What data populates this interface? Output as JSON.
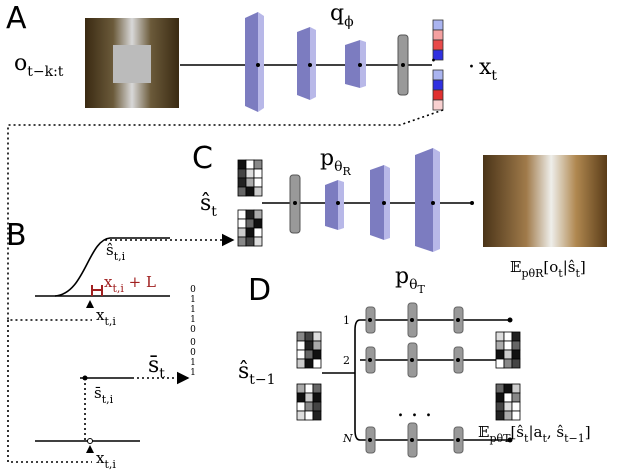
{
  "panels": {
    "a": {
      "label": "A",
      "input": {
        "base": "o",
        "sub": "t−k:t"
      },
      "encoder": {
        "base": "q",
        "sub": "ϕ"
      },
      "output": {
        "base": "x",
        "sub": "t"
      }
    },
    "b": {
      "label": "B",
      "s_hat": {
        "base": "ŝ",
        "sub": "t,i"
      },
      "upper": {
        "base": "x",
        "sub": "t,i",
        "tail": " + L"
      },
      "x_upper": {
        "base": "x",
        "sub": "t,i"
      },
      "s_bar": {
        "base": "s̄",
        "sub": "t"
      },
      "bits": [
        0,
        1,
        1,
        1,
        0,
        0,
        0,
        1,
        1
      ],
      "s_bar_i": {
        "base": "s̄",
        "sub": "t,i"
      },
      "x_lower": {
        "base": "x",
        "sub": "t,i"
      }
    },
    "c": {
      "label": "C",
      "decoder": {
        "base": "p",
        "sub": "θ",
        "subsub": "R"
      },
      "state": {
        "base": "ŝ",
        "sub": "t"
      },
      "output": {
        "base": "𝔼",
        "sub": "pθR",
        "tail": "[o",
        "tail_sub": "t",
        "tail2": "|ŝ",
        "tail2_sub": "t",
        "end": "]"
      }
    },
    "d": {
      "label": "D",
      "model": {
        "base": "p",
        "sub": "θ",
        "subsub": "T"
      },
      "state": {
        "base": "ŝ",
        "sub": "t−1"
      },
      "rows": [
        "1",
        "2",
        "N"
      ],
      "ellipsis": ". . .",
      "output": {
        "base": "𝔼",
        "sub": "pθT",
        "tail": "[ŝ",
        "tail_sub": "t",
        "tail2": "|a",
        "tail2_sub": "t",
        "tail3": ", ŝ",
        "tail3_sub": "t−1",
        "end": "]"
      }
    }
  }
}
